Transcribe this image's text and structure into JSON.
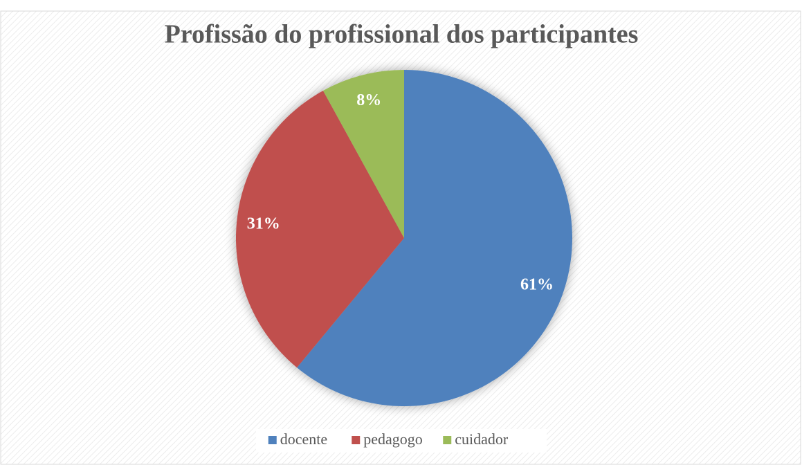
{
  "chart_data": {
    "type": "pie",
    "title": "Profissão do profissional dos participantes",
    "categories": [
      "docente",
      "pedagogo",
      "cuidador"
    ],
    "values": [
      61,
      31,
      8
    ],
    "value_labels": [
      "61%",
      "31%",
      "8%"
    ],
    "colors": [
      "#4f81bd",
      "#c0504d",
      "#9bbb59"
    ],
    "legend": "bottom"
  }
}
